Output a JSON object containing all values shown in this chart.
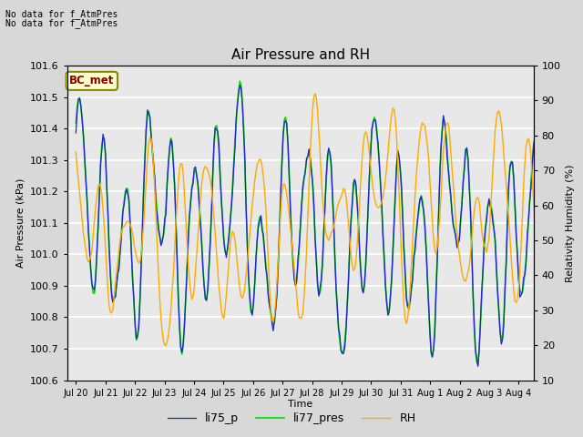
{
  "title": "Air Pressure and RH",
  "xlabel": "Time",
  "ylabel_left": "Air Pressure (kPa)",
  "ylabel_right": "Relativity Humidity (%)",
  "ylim_left": [
    100.6,
    101.6
  ],
  "ylim_right": [
    10,
    100
  ],
  "yticks_left": [
    100.6,
    100.7,
    100.8,
    100.9,
    101.0,
    101.1,
    101.2,
    101.3,
    101.4,
    101.5,
    101.6
  ],
  "yticks_right": [
    10,
    20,
    30,
    40,
    50,
    60,
    70,
    80,
    90,
    100
  ],
  "xtick_labels": [
    "Jul 20",
    "Jul 21",
    "Jul 22",
    "Jul 23",
    "Jul 24",
    "Jul 25",
    "Jul 26",
    "Jul 27",
    "Jul 28",
    "Jul 29",
    "Jul 30",
    "Jul 31",
    "Aug 1",
    "Aug 2",
    "Aug 3",
    "Aug 4"
  ],
  "top_left_text1": "No data for f_AtmPres",
  "top_left_text2": "No data for f_AtmPres",
  "bc_met_label": "BC_met",
  "color_li75": "#2222cc",
  "color_li77": "#00dd00",
  "color_rh": "#ffaa00",
  "legend_entries": [
    "li75_p",
    "li77_pres",
    "RH"
  ],
  "bg_color": "#d8d8d8",
  "plot_bg_color": "#e8e8e8",
  "grid_color": "#ffffff",
  "title_fontsize": 11,
  "label_fontsize": 8,
  "tick_fontsize": 8
}
